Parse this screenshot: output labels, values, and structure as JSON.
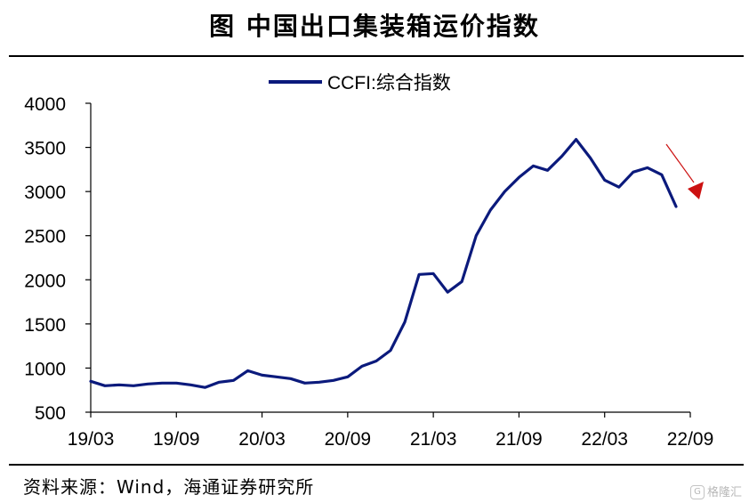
{
  "header": {
    "title": "图    中国出口集装箱运价指数"
  },
  "footer": {
    "source": "资料来源：Wind，海通证券研究所",
    "watermark": "格隆汇"
  },
  "colors": {
    "series": "#0b1a7c",
    "arrow": "#cc1111"
  },
  "chart_data": {
    "type": "line",
    "ylim": [
      500,
      4000
    ],
    "yticks": [
      500,
      1000,
      1500,
      2000,
      2500,
      3000,
      3500,
      4000
    ],
    "xticks": [
      "19/03",
      "19/09",
      "20/03",
      "20/09",
      "21/03",
      "21/09",
      "22/03",
      "22/09"
    ],
    "legend": "top-center",
    "grid": false,
    "annotation": "red arrow pointing down near the latest values",
    "series": [
      {
        "name": "CCFI:综合指数",
        "color": "#0b1a7c",
        "points": [
          [
            "19/03",
            850
          ],
          [
            "19/04",
            800
          ],
          [
            "19/05",
            810
          ],
          [
            "19/06",
            800
          ],
          [
            "19/07",
            820
          ],
          [
            "19/08",
            830
          ],
          [
            "19/09",
            830
          ],
          [
            "19/10",
            810
          ],
          [
            "19/11",
            780
          ],
          [
            "19/12",
            840
          ],
          [
            "20/01",
            860
          ],
          [
            "20/02",
            970
          ],
          [
            "20/03",
            920
          ],
          [
            "20/04",
            900
          ],
          [
            "20/05",
            880
          ],
          [
            "20/06",
            830
          ],
          [
            "20/07",
            840
          ],
          [
            "20/08",
            860
          ],
          [
            "20/09",
            900
          ],
          [
            "20/10",
            1020
          ],
          [
            "20/11",
            1080
          ],
          [
            "20/12",
            1200
          ],
          [
            "21/01",
            1520
          ],
          [
            "21/02",
            2060
          ],
          [
            "21/03",
            2070
          ],
          [
            "21/04",
            1860
          ],
          [
            "21/05",
            1980
          ],
          [
            "21/06",
            2500
          ],
          [
            "21/07",
            2790
          ],
          [
            "21/08",
            3000
          ],
          [
            "21/09",
            3160
          ],
          [
            "21/10",
            3290
          ],
          [
            "21/11",
            3240
          ],
          [
            "21/12",
            3400
          ],
          [
            "22/01",
            3590
          ],
          [
            "22/02",
            3380
          ],
          [
            "22/03",
            3130
          ],
          [
            "22/04",
            3050
          ],
          [
            "22/05",
            3220
          ],
          [
            "22/06",
            3270
          ],
          [
            "22/07",
            3190
          ],
          [
            "22/08",
            2830
          ]
        ]
      }
    ]
  }
}
